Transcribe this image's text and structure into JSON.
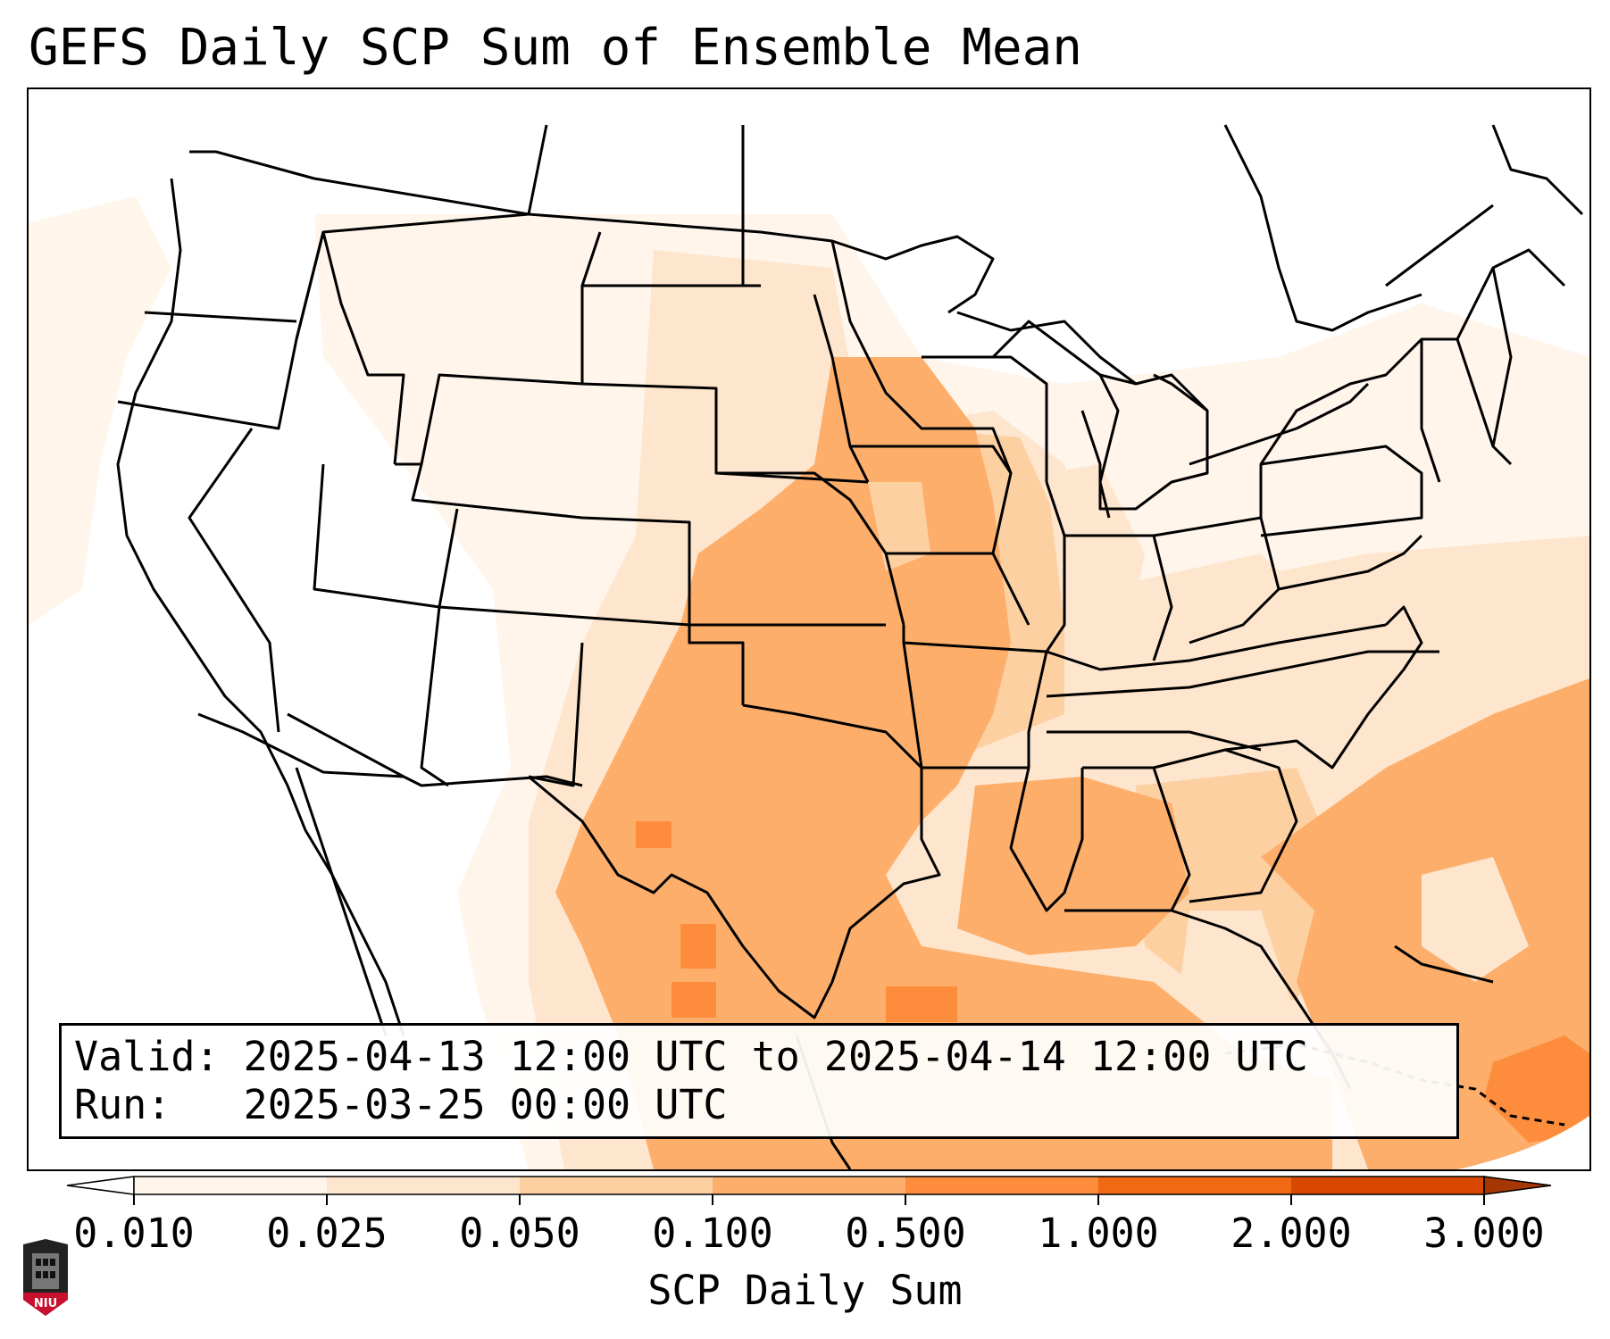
{
  "title": "GEFS Daily SCP Sum of Ensemble Mean",
  "info": {
    "valid_label": "Valid:",
    "valid_value": "2025-04-13 12:00 UTC to 2025-04-14 12:00 UTC",
    "run_label": "Run:",
    "run_value": "2025-03-25 00:00 UTC"
  },
  "colorbar": {
    "label": "SCP Daily Sum",
    "ticks": [
      "0.010",
      "0.025",
      "0.050",
      "0.100",
      "0.500",
      "1.000",
      "2.000",
      "3.000"
    ],
    "colors": [
      "#fff5eb",
      "#fee6ce",
      "#fdd0a2",
      "#fdae6b",
      "#fd8d3c",
      "#f16913",
      "#d94801"
    ],
    "under_color": "#ffffff",
    "over_color": "#a63603"
  },
  "logo": {
    "text": "NIU",
    "icon": "niu-logo-icon"
  },
  "colors": {
    "border": "#000000",
    "background": "#ffffff"
  }
}
